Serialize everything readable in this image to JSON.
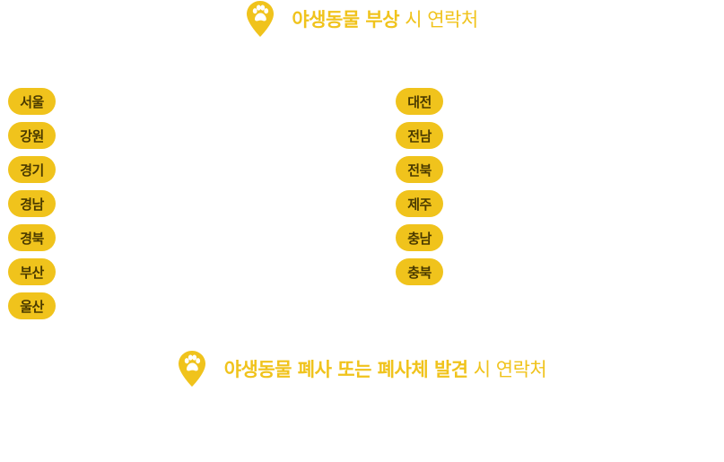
{
  "section_injury": {
    "icon": "paw-location-pin-icon",
    "title_highlight": "야생동물 부상",
    "title_rest": " 시 연락처"
  },
  "regions_left": [
    "서울",
    "강원",
    "경기",
    "경남",
    "경북",
    "부산",
    "울산"
  ],
  "regions_right": [
    "대전",
    "전남",
    "전북",
    "제주",
    "충남",
    "충북"
  ],
  "section_death": {
    "icon": "paw-location-pin-icon",
    "title_highlight": "야생동물 폐사 또는 폐사체 발견",
    "title_rest": " 시 연락처"
  },
  "colors": {
    "accent": "#f0c31c",
    "button_text": "#4a3a00",
    "background": "#ffffff"
  }
}
